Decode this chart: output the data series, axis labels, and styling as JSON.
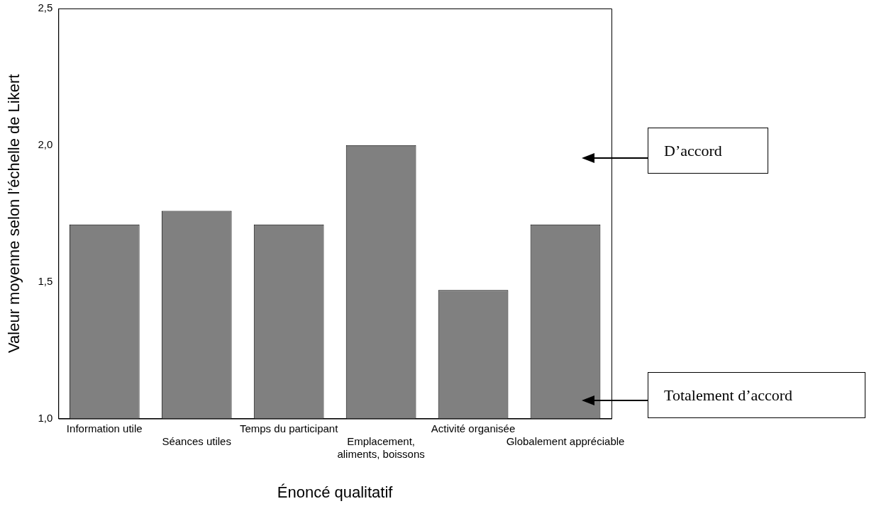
{
  "chart_data": {
    "type": "bar",
    "xlabel": "Énoncé qualitatif",
    "ylabel": "Valeur moyenne selon l’échelle de Likert",
    "categories": [
      "Information utile",
      "Séances utiles",
      "Temps du participant",
      "Emplacement, aliments, boissons",
      "Activité organisée",
      "Globalement appréciable"
    ],
    "values": [
      1.71,
      1.76,
      1.71,
      2.0,
      1.47,
      1.71
    ],
    "color": "#808080",
    "ylim": [
      1.0,
      2.5
    ],
    "yticks": [
      {
        "value": 1.0,
        "label": "1,0"
      },
      {
        "value": 1.5,
        "label": "1,5"
      },
      {
        "value": 2.0,
        "label": "2,0"
      },
      {
        "value": 2.5,
        "label": "2,5"
      }
    ],
    "grid": false,
    "annotations": [
      "D’accord",
      "Totalement d’accord"
    ]
  }
}
